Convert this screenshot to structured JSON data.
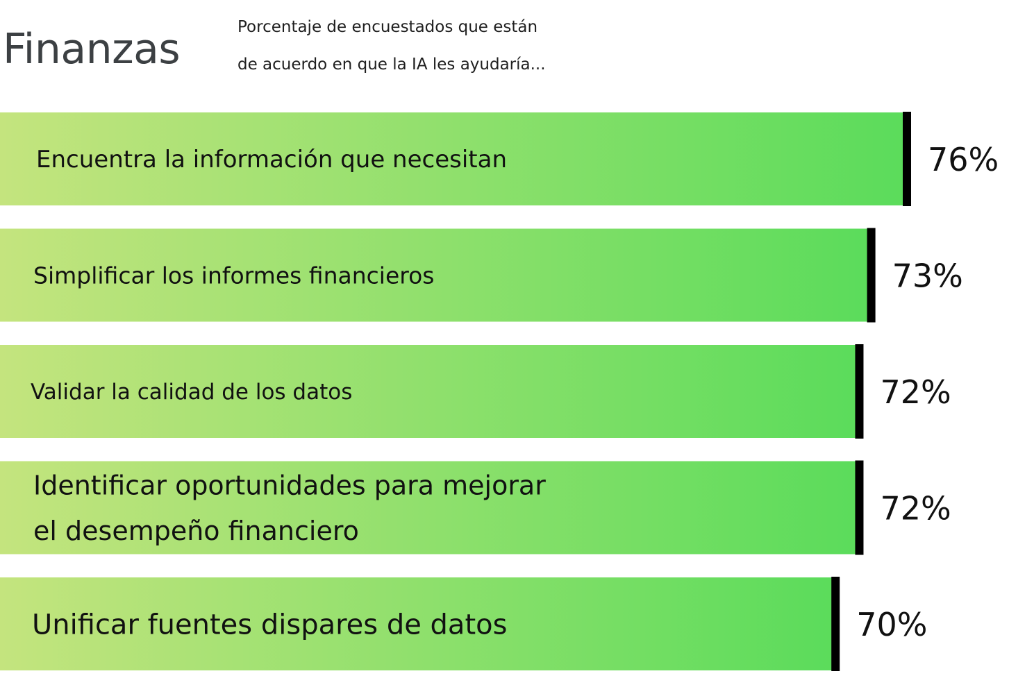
{
  "header": {
    "title": "Finanzas",
    "subtitle_line1": "Porcentaje de encuestados que están",
    "subtitle_line2": "de acuerdo en que la IA les ayudaría..."
  },
  "colors": {
    "bar_start": "#c4e47e",
    "bar_end": "#5bdc5b",
    "marker": "#000000"
  },
  "chart_data": {
    "type": "bar",
    "orientation": "horizontal",
    "categories": [
      [
        "Encuentra la información que necesitan"
      ],
      [
        "Simplificar los informes financieros"
      ],
      [
        "Validar la calidad de los datos"
      ],
      [
        "Identificar oportunidades para mejorar",
        "el desempeño financiero"
      ],
      [
        "Unificar fuentes dispares de datos"
      ]
    ],
    "values": [
      76,
      73,
      72,
      72,
      70
    ],
    "value_labels": [
      "76%",
      "73%",
      "72%",
      "72%",
      "70%"
    ],
    "unit": "%",
    "grid": false
  }
}
